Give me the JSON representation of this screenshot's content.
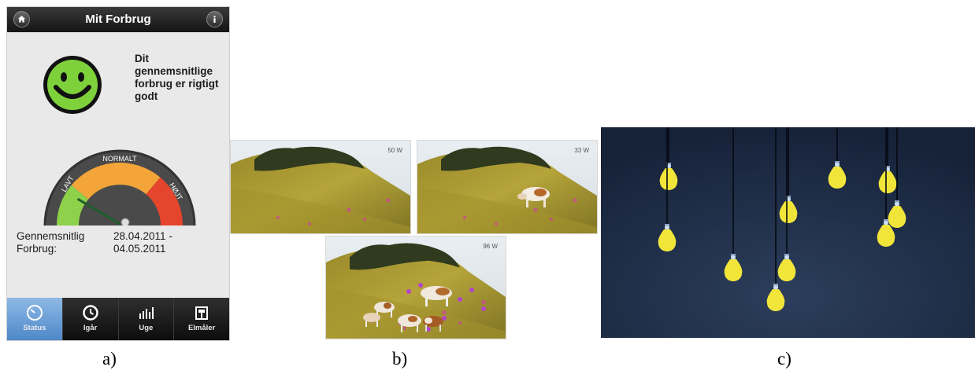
{
  "app": {
    "title": "Mit Forbrug",
    "status_message": "Dit gennemsnitlige forbrug er rigtigt godt",
    "mood": "happy",
    "gauge": {
      "labels": [
        "LAVT",
        "NORMALT",
        "HØJT"
      ],
      "needle_fraction": 0.18,
      "colors": {
        "low": "#8ed14a",
        "normal": "#f3a53a",
        "high": "#e5452d"
      }
    },
    "average_label": "Gennemsnitlig Forbrug:",
    "average_label_lines": [
      "Gennemsnitlig",
      "Forbrug:"
    ],
    "period_lines": [
      "28.04.2011 -",
      "04.05.2011"
    ],
    "tabs": [
      {
        "label": "Status",
        "icon": "speedometer-icon",
        "active": true
      },
      {
        "label": "Igår",
        "icon": "clock-icon",
        "active": false
      },
      {
        "label": "Uge",
        "icon": "bar-chart-icon",
        "active": false
      },
      {
        "label": "Elmåler",
        "icon": "meter-icon",
        "active": false
      }
    ]
  },
  "photos": [
    {
      "watt": "50 W",
      "cows": 0
    },
    {
      "watt": "33 W",
      "cows": 1
    },
    {
      "watt": "96 W",
      "cows": 5
    }
  ],
  "bulbs_scene": {
    "background": "#1c2c45",
    "bulb_color": "#f1e53a",
    "bulb_count": 10
  },
  "captions": [
    "a)",
    "b)",
    "c)"
  ]
}
